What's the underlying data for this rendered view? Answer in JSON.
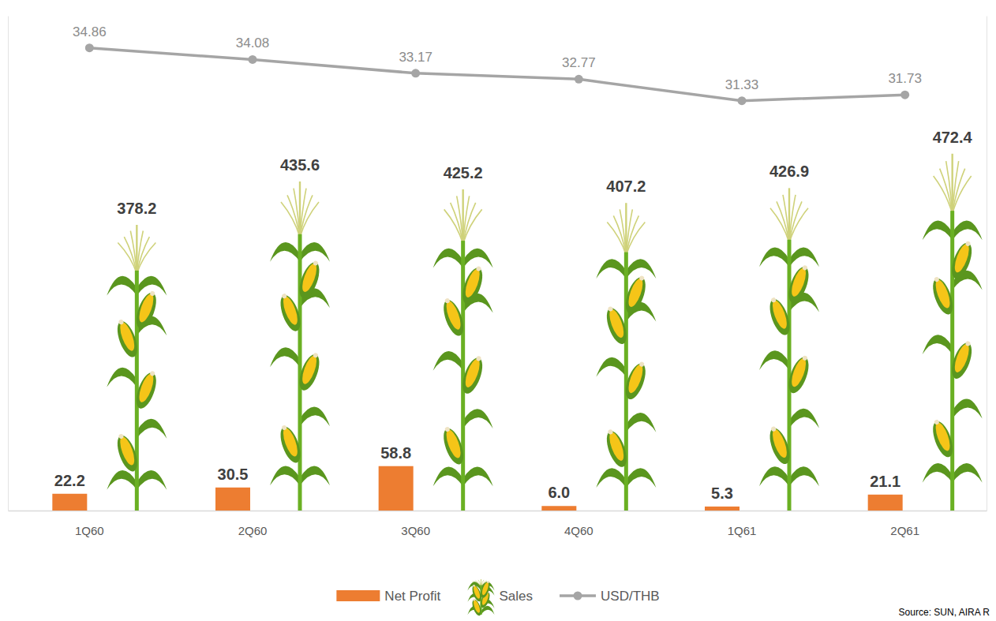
{
  "chart_data": {
    "type": "combo",
    "categories": [
      "1Q60",
      "2Q60",
      "3Q60",
      "4Q60",
      "1Q61",
      "2Q61"
    ],
    "series": [
      {
        "name": "Net Profit",
        "type": "bar",
        "color": "#ed7d31",
        "values": [
          22.2,
          30.5,
          58.8,
          6.0,
          5.3,
          21.1
        ],
        "value_labels": [
          "22.2",
          "30.5",
          "58.8",
          "6.0",
          "5.3",
          "21.1"
        ]
      },
      {
        "name": "Sales",
        "type": "pictograph",
        "color": "#6ab023",
        "values": [
          378.2,
          435.6,
          425.2,
          407.2,
          426.9,
          472.4
        ]
      },
      {
        "name": "USD/THB",
        "type": "line",
        "color": "#a5a5a5",
        "axis": "y2",
        "marker": "circle",
        "values": [
          34.86,
          34.08,
          33.17,
          32.77,
          31.33,
          31.73
        ]
      }
    ],
    "ylim": [
      0,
      655
    ],
    "y2lim": [
      4,
      37
    ],
    "data_labels": true,
    "tick_labels": "x",
    "legend": "bottom",
    "source": "Source: SUN, AIRA R"
  }
}
